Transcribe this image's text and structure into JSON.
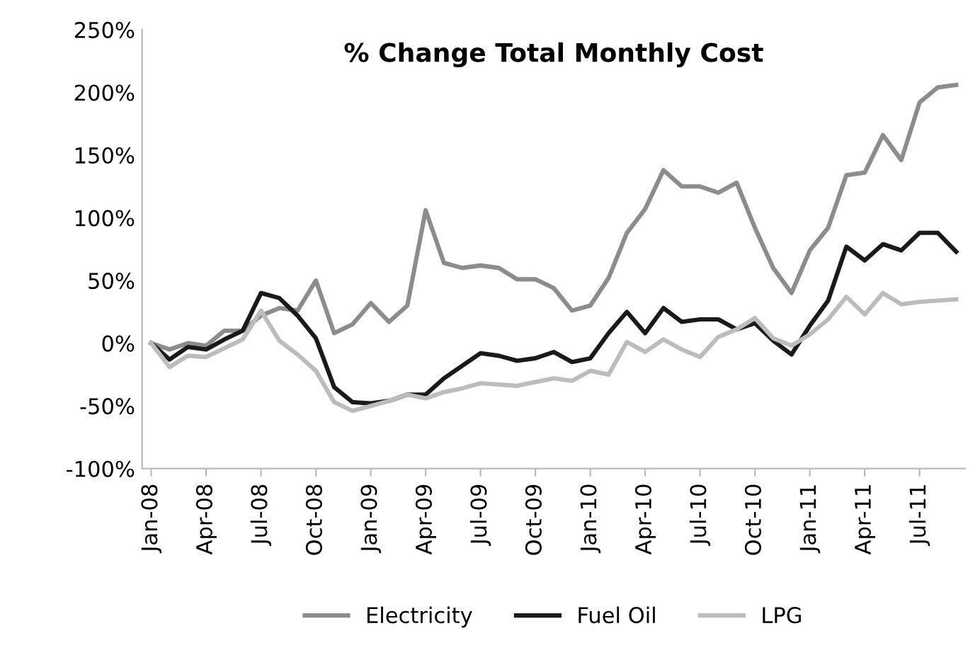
{
  "chart_data": {
    "type": "line",
    "title": "% Change Total Monthly Cost",
    "categories": [
      "Jan-08",
      null,
      null,
      "Apr-08",
      null,
      null,
      "Jul-08",
      null,
      null,
      "Oct-08",
      null,
      null,
      "Jan-09",
      null,
      null,
      "Apr-09",
      null,
      null,
      "Jul-09",
      null,
      null,
      "Oct-09",
      null,
      null,
      "Jan-10",
      null,
      null,
      "Apr-10",
      null,
      null,
      "Jul-10",
      null,
      null,
      "Oct-10",
      null,
      null,
      "Jan-11",
      null,
      null,
      "Apr-11",
      null,
      null,
      "Jul-11",
      null,
      null
    ],
    "series": [
      {
        "name": "Electricity",
        "color": "#8c8c8c",
        "values": [
          0,
          -5,
          0,
          -2,
          10,
          10,
          22,
          28,
          26,
          50,
          8,
          15,
          32,
          17,
          30,
          106,
          64,
          60,
          62,
          60,
          51,
          51,
          44,
          26,
          30,
          52,
          88,
          107,
          138,
          125,
          125,
          120,
          128,
          92,
          60,
          40,
          74,
          92,
          134,
          136,
          166,
          146,
          192,
          204,
          206
        ]
      },
      {
        "name": "Fuel Oil",
        "color": "#1a1a1a",
        "values": [
          0,
          -13,
          -3,
          -5,
          3,
          10,
          40,
          36,
          22,
          4,
          -35,
          -47,
          -48,
          -46,
          -41,
          -41,
          -28,
          -18,
          -8,
          -10,
          -14,
          -12,
          -7,
          -15,
          -12,
          8,
          25,
          8,
          28,
          17,
          19,
          19,
          11,
          16,
          2,
          -9,
          14,
          34,
          77,
          66,
          79,
          74,
          88,
          88,
          73
        ]
      },
      {
        "name": "LPG",
        "color": "#bcbcbc",
        "values": [
          0,
          -19,
          -10,
          -11,
          -4,
          3,
          26,
          2,
          -9,
          -22,
          -47,
          -54,
          -50,
          -46,
          -41,
          -44,
          -39,
          -36,
          -32,
          -33,
          -34,
          -31,
          -28,
          -30,
          -22,
          -25,
          1,
          -7,
          3,
          -5,
          -11,
          5,
          11,
          20,
          4,
          -2,
          7,
          19,
          37,
          23,
          40,
          31,
          33,
          34,
          35
        ]
      }
    ],
    "ylim": [
      -100,
      250
    ],
    "yticks": [
      {
        "value": -100,
        "label": "-100%"
      },
      {
        "value": -50,
        "label": "-50%"
      },
      {
        "value": 0,
        "label": "0%"
      },
      {
        "value": 50,
        "label": "50%"
      },
      {
        "value": 100,
        "label": "100%"
      },
      {
        "value": 150,
        "label": "150%"
      },
      {
        "value": 200,
        "label": "200%"
      },
      {
        "value": 250,
        "label": "250%"
      }
    ],
    "grid": false,
    "legend": "bottom",
    "marker": "none",
    "line_style": "solid"
  }
}
